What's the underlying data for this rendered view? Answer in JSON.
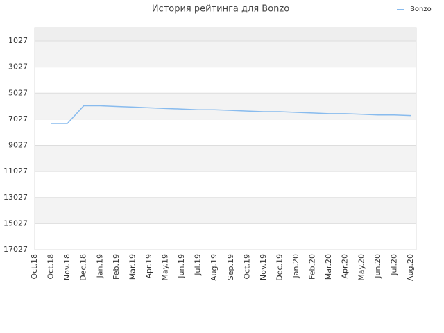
{
  "chart_data": {
    "type": "line",
    "title": "История рейтинга для Bonzo",
    "categories": [
      "Oct.18",
      "Oct.18",
      "Nov.18",
      "Dec.18",
      "Jan.19",
      "Feb.19",
      "Mar.19",
      "Apr.19",
      "May.19",
      "Jun.19",
      "Jul.19",
      "Aug.19",
      "Sep.19",
      "Oct.19",
      "Nov.19",
      "Dec.19",
      "Jan.20",
      "Feb.20",
      "Mar.20",
      "Apr.20",
      "May.20",
      "Jun.20",
      "Jul.20",
      "Aug.20"
    ],
    "series": [
      {
        "name": "Bonzo",
        "color": "#88bbee",
        "values": [
          null,
          7350,
          7350,
          6000,
          6000,
          6050,
          6100,
          6150,
          6200,
          6250,
          6300,
          6300,
          6350,
          6400,
          6450,
          6450,
          6500,
          6550,
          6600,
          6600,
          6650,
          6700,
          6700,
          6750
        ]
      }
    ],
    "ylim": [
      17027,
      17
    ],
    "yticks": [
      1027,
      3027,
      5027,
      7027,
      9027,
      11027,
      13027,
      15027,
      17027
    ],
    "grid": true,
    "legend": "top-right"
  }
}
